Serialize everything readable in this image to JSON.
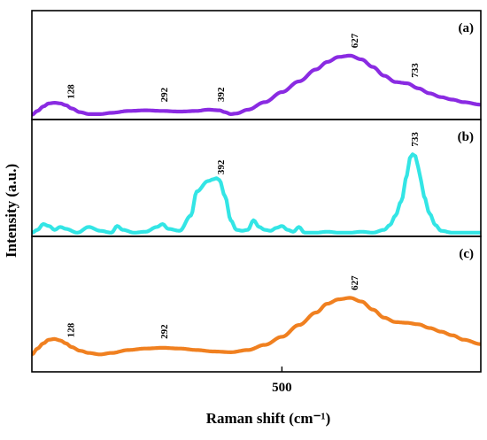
{
  "chart_data": {
    "type": "line",
    "xlabel": "Raman shift (cm⁻¹)",
    "ylabel": "Intensity (a.u.)",
    "x_ticks": [
      500
    ],
    "xlim": [
      60,
      850
    ],
    "grid": false,
    "panels": [
      {
        "label": "(a)",
        "color": "#8a2be2",
        "ylim": [
          0,
          1
        ],
        "peak_labels": [
          {
            "x": 128,
            "text": "128"
          },
          {
            "x": 292,
            "text": "292"
          },
          {
            "x": 392,
            "text": "392"
          },
          {
            "x": 627,
            "text": "627"
          },
          {
            "x": 733,
            "text": "733"
          }
        ],
        "x": [
          60,
          70,
          80,
          90,
          100,
          110,
          120,
          130,
          145,
          160,
          180,
          200,
          230,
          260,
          290,
          320,
          350,
          370,
          390,
          400,
          410,
          420,
          440,
          470,
          500,
          530,
          560,
          580,
          600,
          620,
          640,
          660,
          680,
          700,
          720,
          740,
          760,
          780,
          800,
          820,
          850
        ],
        "values": [
          0.02,
          0.08,
          0.15,
          0.2,
          0.21,
          0.2,
          0.17,
          0.12,
          0.06,
          0.03,
          0.03,
          0.05,
          0.08,
          0.09,
          0.08,
          0.07,
          0.08,
          0.1,
          0.09,
          0.06,
          0.03,
          0.04,
          0.1,
          0.22,
          0.38,
          0.55,
          0.74,
          0.86,
          0.94,
          0.96,
          0.9,
          0.78,
          0.64,
          0.54,
          0.52,
          0.44,
          0.36,
          0.3,
          0.26,
          0.22,
          0.18
        ]
      },
      {
        "label": "(b)",
        "color": "#33e5e5",
        "ylim": [
          0,
          1
        ],
        "peak_labels": [
          {
            "x": 392,
            "text": "392"
          },
          {
            "x": 733,
            "text": "733"
          }
        ],
        "x": [
          60,
          70,
          80,
          90,
          100,
          110,
          120,
          140,
          160,
          180,
          200,
          210,
          220,
          240,
          260,
          280,
          290,
          300,
          320,
          340,
          350,
          370,
          380,
          385,
          390,
          400,
          410,
          420,
          430,
          440,
          450,
          460,
          470,
          480,
          490,
          500,
          510,
          520,
          530,
          540,
          560,
          580,
          600,
          620,
          640,
          660,
          680,
          690,
          700,
          710,
          720,
          725,
          730,
          735,
          740,
          745,
          750,
          760,
          770,
          780,
          800,
          820,
          850
        ],
        "values": [
          0.02,
          0.05,
          0.11,
          0.09,
          0.05,
          0.08,
          0.06,
          0.02,
          0.08,
          0.04,
          0.02,
          0.09,
          0.05,
          0.02,
          0.03,
          0.08,
          0.11,
          0.06,
          0.04,
          0.2,
          0.45,
          0.56,
          0.58,
          0.59,
          0.57,
          0.4,
          0.15,
          0.05,
          0.04,
          0.05,
          0.15,
          0.08,
          0.05,
          0.04,
          0.07,
          0.09,
          0.05,
          0.03,
          0.08,
          0.02,
          0.02,
          0.03,
          0.02,
          0.02,
          0.03,
          0.02,
          0.05,
          0.1,
          0.2,
          0.35,
          0.62,
          0.8,
          0.84,
          0.82,
          0.7,
          0.56,
          0.4,
          0.22,
          0.1,
          0.04,
          0.02,
          0.02,
          0.02
        ]
      },
      {
        "label": "(c)",
        "color": "#f08020",
        "ylim": [
          0,
          1
        ],
        "peak_labels": [
          {
            "x": 128,
            "text": "128"
          },
          {
            "x": 292,
            "text": "292"
          },
          {
            "x": 627,
            "text": "627"
          }
        ],
        "x": [
          60,
          70,
          80,
          90,
          100,
          110,
          120,
          130,
          145,
          160,
          180,
          200,
          230,
          260,
          290,
          320,
          350,
          380,
          410,
          440,
          470,
          500,
          530,
          560,
          580,
          600,
          620,
          640,
          660,
          680,
          700,
          720,
          740,
          760,
          780,
          800,
          820,
          850
        ],
        "values": [
          0.02,
          0.1,
          0.17,
          0.22,
          0.23,
          0.21,
          0.17,
          0.12,
          0.07,
          0.04,
          0.02,
          0.04,
          0.08,
          0.1,
          0.11,
          0.1,
          0.08,
          0.06,
          0.05,
          0.08,
          0.15,
          0.26,
          0.42,
          0.59,
          0.71,
          0.77,
          0.79,
          0.74,
          0.63,
          0.52,
          0.46,
          0.45,
          0.43,
          0.38,
          0.33,
          0.28,
          0.22,
          0.16
        ]
      }
    ]
  }
}
